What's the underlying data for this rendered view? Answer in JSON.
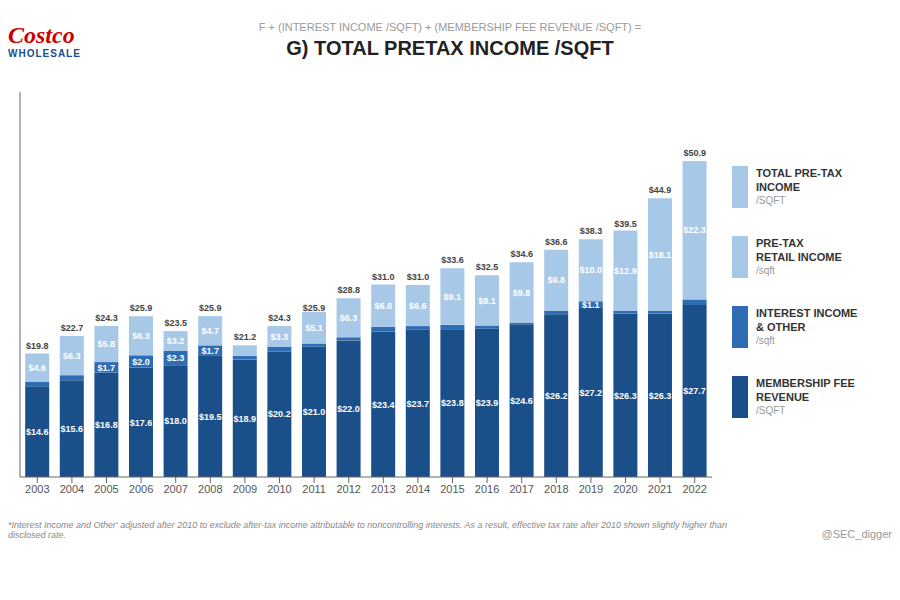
{
  "chart_data": {
    "type": "bar",
    "stacked": true,
    "title": "G) TOTAL PRETAX INCOME /SQFT",
    "subtitle": "F + (INTEREST INCOME /SQFT) + (MEMBERSHIP FEE REVENUE /SQFT) =",
    "footnote": "*Interest Income and Other' adjusted after 2010 to exclude after-tax income attributable to noncontrolling interests.  As a result, effective tax rate after 2010 shown slightly higher than disclosed rate.",
    "source": "@SEC_digger",
    "annotations": [
      "Costco",
      "WHOLESALE"
    ],
    "categories": [
      "2003",
      "2004",
      "2005",
      "2006",
      "2007",
      "2008",
      "2009",
      "2010",
      "2011",
      "2012",
      "2013",
      "2014",
      "2015",
      "2016",
      "2017",
      "2018",
      "2019",
      "2020",
      "2021",
      "2022"
    ],
    "series": [
      {
        "name": "MEMBERSHIP FEE\nREVENUE\n/SQFT",
        "color": "#1a4f8a",
        "values": [
          14.6,
          15.6,
          16.8,
          17.6,
          18.0,
          19.5,
          18.9,
          20.2,
          21.0,
          22.0,
          23.4,
          23.7,
          23.8,
          23.9,
          24.6,
          26.2,
          27.2,
          26.3,
          26.3,
          27.7
        ],
        "value_labels": [
          "$14.6",
          "$15.6",
          "$16.8",
          "$17.6",
          "$18.0",
          "$19.5",
          "$18.9",
          "$20.2",
          "$21.0",
          "$22.0",
          "$23.4",
          "$23.7",
          "$23.8",
          "$23.9",
          "$24.6",
          "$26.2",
          "$27.2",
          "$26.3",
          "$26.3",
          "$27.7"
        ]
      },
      {
        "name": "INTEREST INCOME\n& OTHER\n/sqft",
        "color": "#2e6db4",
        "values": [
          0.7,
          0.8,
          1.7,
          2.0,
          2.3,
          1.7,
          0.6,
          0.8,
          0.5,
          0.5,
          0.8,
          0.6,
          0.7,
          0.5,
          0.2,
          0.6,
          1.1,
          0.5,
          0.5,
          0.9
        ],
        "value_labels": [
          null,
          null,
          "$1.7",
          "$2.0",
          "$2.3",
          "$1.7",
          null,
          null,
          null,
          null,
          null,
          null,
          null,
          null,
          null,
          null,
          "$1.1",
          null,
          null,
          null
        ]
      },
      {
        "name": "PRE-TAX\nRETAIL INCOME\n/sqft",
        "color": "#a8c8e8",
        "values": [
          4.6,
          6.3,
          5.8,
          6.3,
          3.2,
          4.7,
          1.7,
          3.3,
          5.1,
          6.3,
          6.8,
          6.6,
          9.1,
          8.1,
          9.8,
          9.8,
          10.0,
          12.9,
          18.1,
          22.3
        ],
        "value_labels": [
          "$4.6",
          "$6.3",
          "$5.8",
          "$6.3",
          "$3.2",
          "$4.7",
          null,
          "$3.3",
          "$5.1",
          "$6.3",
          "$6.8",
          "$6.6",
          "$9.1",
          "$8.1",
          "$9.8",
          "$9.8",
          "$10.0",
          "$12.9",
          "$18.1",
          "$22.3"
        ]
      }
    ],
    "totals": {
      "name": "TOTAL PRE-TAX\nINCOME\n/SQFT",
      "color": "#a8c8e8",
      "values": [
        19.8,
        22.7,
        24.3,
        25.9,
        23.5,
        25.9,
        21.2,
        24.3,
        25.9,
        28.8,
        31.0,
        31.0,
        33.6,
        32.5,
        34.6,
        36.6,
        38.3,
        39.5,
        44.9,
        50.9
      ],
      "value_labels": [
        "$19.8",
        "$22.7",
        "$24.3",
        "$25.9",
        "$23.5",
        "$25.9",
        "$21.2",
        "$24.3",
        "$25.9",
        "$28.8",
        "$31.0",
        "$31.0",
        "$33.6",
        "$32.5",
        "$34.6",
        "$36.6",
        "$38.3",
        "$39.5",
        "$44.9",
        "$50.9"
      ]
    },
    "ylim": [
      0,
      62
    ],
    "grid": false,
    "legend": "right",
    "data_labels": true,
    "tick_labels": "x"
  }
}
